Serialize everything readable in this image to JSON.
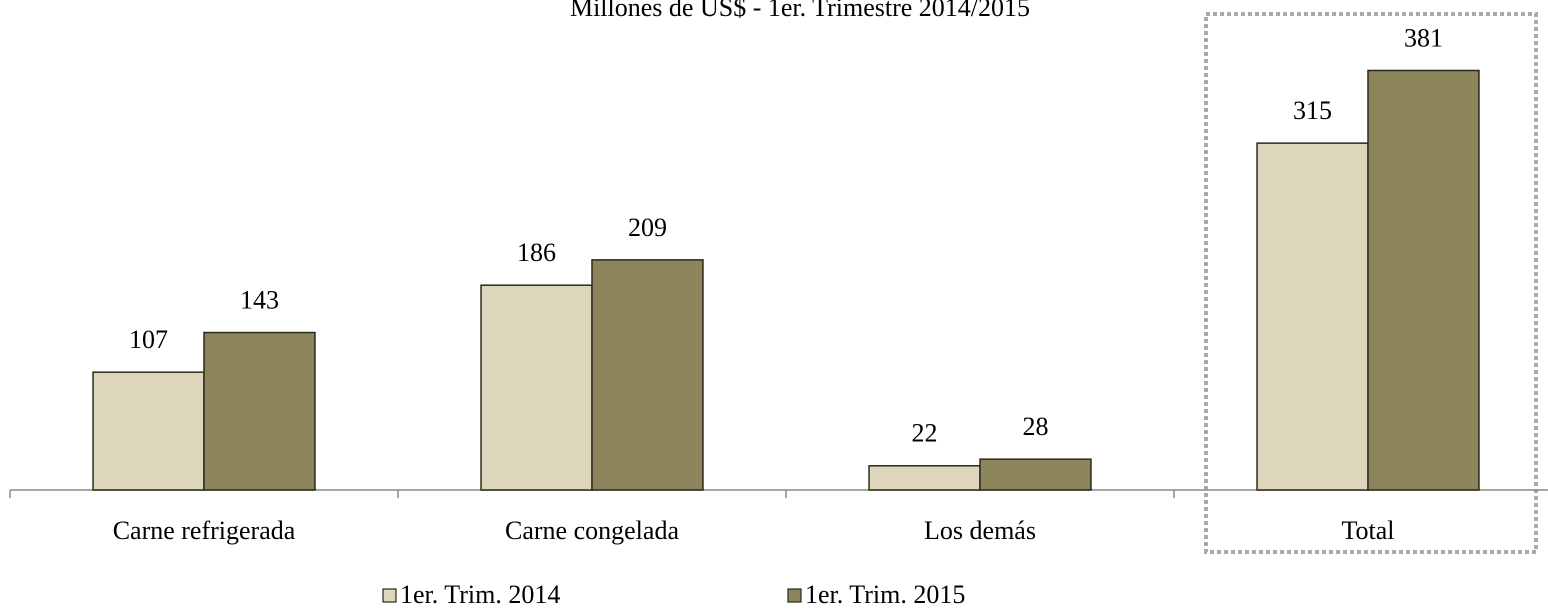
{
  "chart_data": {
    "type": "bar",
    "title": "Millones de US$ - 1er. Trimestre 2014/2015",
    "categories": [
      "Carne refrigerada",
      "Carne congelada",
      "Los demás",
      "Total"
    ],
    "series": [
      {
        "name": "1er. Trim. 2014",
        "color": "#ddd6bc",
        "values": [
          107,
          186,
          22,
          315
        ]
      },
      {
        "name": "1er. Trim. 2015",
        "color": "#8c845a",
        "values": [
          143,
          209,
          28,
          381
        ]
      }
    ],
    "ylim": [
      0,
      445
    ]
  }
}
